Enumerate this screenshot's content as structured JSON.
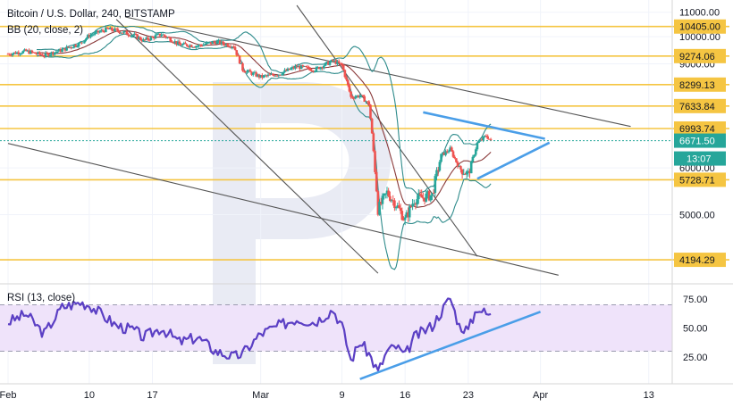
{
  "header": {
    "title": "Bitcoin / U.S. Dollar, 240, BITSTAMP",
    "indicator": "BB (20, close, 2)",
    "rsi_label": "RSI (13, close)"
  },
  "colors": {
    "candle_up": "#26a69a",
    "candle_down": "#ef5350",
    "level_line": "#f5c542",
    "bands": "#2e8b8b",
    "basis": "#8b3a3a",
    "trend": "#555555",
    "triangle": "#4a9ee8",
    "rsi_line": "#5b3fc4",
    "rsi_fill": "#efe3fa",
    "current_price_bg": "#26a69a",
    "watermark": "#e6e8f2"
  },
  "chart_data": [
    {
      "type": "candlestick",
      "title": "Bitcoin / U.S. Dollar, 240, BITSTAMP",
      "y_scale": "log",
      "ylim": [
        3900,
        11300
      ],
      "price_ticks": [
        "11000.00",
        "10000.00",
        "9000.00",
        "6000.00",
        "5000.00"
      ],
      "levels": [
        {
          "value": 10405,
          "label": "10405.00"
        },
        {
          "value": 9274.06,
          "label": "9274.06"
        },
        {
          "value": 8299.13,
          "label": "8299.13"
        },
        {
          "value": 7633.84,
          "label": "7633.84"
        },
        {
          "value": 6993.74,
          "label": "6993.74"
        },
        {
          "value": 5728.71,
          "label": "5728.71"
        },
        {
          "value": 4194.29,
          "label": "4194.29"
        }
      ],
      "current_price": {
        "value": 6671.5,
        "label": "6671.50",
        "countdown": "13:07"
      },
      "x_ticks": [
        "Feb",
        "10",
        "17",
        "Mar",
        "9",
        "16",
        "23",
        "Apr",
        "13"
      ],
      "x_tick_days": [
        1,
        10,
        17,
        29,
        38,
        45,
        52,
        60,
        72
      ],
      "x_range_days": [
        1,
        74
      ],
      "close_anchors": [
        [
          1,
          9350
        ],
        [
          3,
          9450
        ],
        [
          5,
          9300
        ],
        [
          7,
          9500
        ],
        [
          9,
          9750
        ],
        [
          10,
          10050
        ],
        [
          12,
          10300
        ],
        [
          13,
          10250
        ],
        [
          15,
          10050
        ],
        [
          16,
          9850
        ],
        [
          18,
          10100
        ],
        [
          20,
          9700
        ],
        [
          22,
          9650
        ],
        [
          24,
          9800
        ],
        [
          26,
          9650
        ],
        [
          27,
          8800
        ],
        [
          29,
          8550
        ],
        [
          31,
          8650
        ],
        [
          33,
          8900
        ],
        [
          35,
          8800
        ],
        [
          37,
          9100
        ],
        [
          38,
          8950
        ],
        [
          39,
          7900
        ],
        [
          40,
          7950
        ],
        [
          41,
          7700
        ],
        [
          42,
          5100
        ],
        [
          43,
          5450
        ],
        [
          44,
          5200
        ],
        [
          45,
          4900
        ],
        [
          46,
          5300
        ],
        [
          48,
          5400
        ],
        [
          49,
          6300
        ],
        [
          50,
          6450
        ],
        [
          51,
          6000
        ],
        [
          52,
          5850
        ],
        [
          53,
          6600
        ],
        [
          54,
          6800
        ],
        [
          54.5,
          6671.5
        ]
      ]
    },
    {
      "type": "line",
      "title": "RSI (13, close)",
      "ylim": [
        5,
        85
      ],
      "y_ticks": [
        "75.00",
        "50.00",
        "25.00"
      ],
      "band": [
        30,
        70
      ],
      "points": [
        [
          1,
          55
        ],
        [
          3,
          62
        ],
        [
          5,
          45
        ],
        [
          7,
          68
        ],
        [
          9,
          72
        ],
        [
          10,
          70
        ],
        [
          12,
          58
        ],
        [
          13,
          52
        ],
        [
          15,
          48
        ],
        [
          16,
          42
        ],
        [
          18,
          50
        ],
        [
          20,
          38
        ],
        [
          22,
          42
        ],
        [
          24,
          30
        ],
        [
          26,
          25
        ],
        [
          27,
          28
        ],
        [
          29,
          45
        ],
        [
          31,
          52
        ],
        [
          33,
          58
        ],
        [
          35,
          55
        ],
        [
          37,
          66
        ],
        [
          38,
          52
        ],
        [
          39,
          22
        ],
        [
          40,
          38
        ],
        [
          41,
          28
        ],
        [
          42,
          12
        ],
        [
          43,
          30
        ],
        [
          44,
          34
        ],
        [
          45,
          26
        ],
        [
          46,
          42
        ],
        [
          48,
          52
        ],
        [
          49,
          64
        ],
        [
          50,
          76
        ],
        [
          51,
          52
        ],
        [
          52,
          48
        ],
        [
          53,
          68
        ],
        [
          54,
          62
        ],
        [
          54.5,
          62
        ]
      ]
    }
  ]
}
